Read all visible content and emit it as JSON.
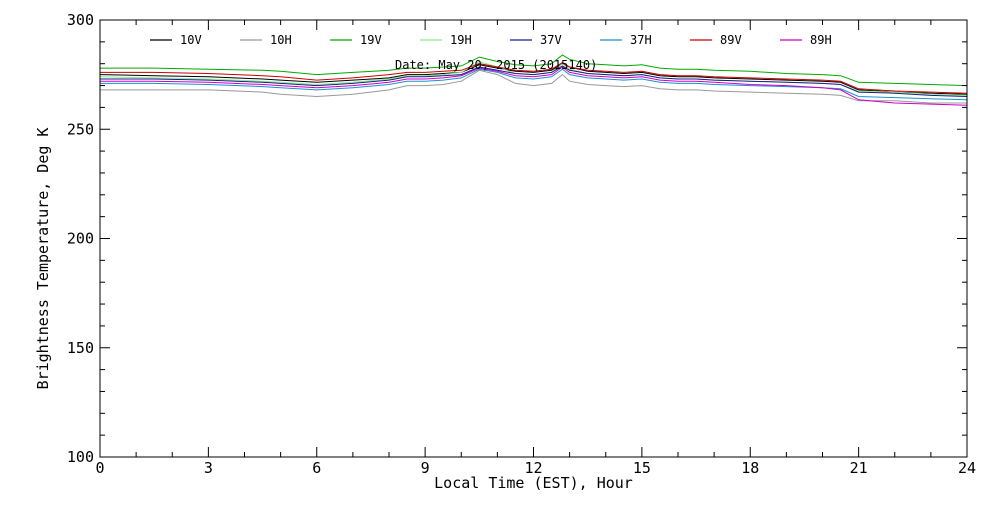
{
  "chart_data": {
    "type": "line",
    "title": "",
    "annotation": "Date: May 20, 2015 (2015140)",
    "xlabel": "Local Time (EST), Hour",
    "ylabel": "Brightness Temperature, Deg K",
    "xlim": [
      0,
      24
    ],
    "ylim": [
      100,
      300
    ],
    "x_ticks": [
      0,
      3,
      6,
      9,
      12,
      15,
      18,
      21,
      24
    ],
    "y_ticks": [
      100,
      150,
      200,
      250,
      300
    ],
    "grid": false,
    "legend_position": "top",
    "series": [
      {
        "name": "10V",
        "color": "#000000",
        "x": [
          0,
          1.5,
          3,
          4.5,
          5,
          6,
          7,
          8,
          8.5,
          9,
          9.5,
          10,
          10.5,
          11,
          11.5,
          12,
          12.5,
          12.8,
          13,
          13.5,
          14,
          14.5,
          15,
          15.5,
          16,
          16.5,
          17,
          18,
          19,
          20,
          20.5,
          21,
          22,
          23,
          24
        ],
        "y": [
          275,
          274.5,
          274,
          273,
          272.5,
          271.5,
          272.5,
          273.5,
          275,
          275,
          275.5,
          276,
          279.5,
          278,
          276.5,
          276,
          277,
          280,
          278.5,
          276.5,
          276,
          275.5,
          276,
          274.5,
          274,
          274,
          273.5,
          273,
          272.5,
          272,
          271.5,
          268,
          267,
          266.5,
          266
        ]
      },
      {
        "name": "10H",
        "color": "#999999",
        "x": [
          0,
          1.5,
          3,
          4.5,
          5,
          6,
          7,
          8,
          8.5,
          9,
          9.5,
          10,
          10.5,
          11,
          11.5,
          12,
          12.5,
          12.8,
          13,
          13.5,
          14,
          14.5,
          15,
          15.5,
          16,
          16.5,
          17,
          18,
          19,
          20,
          20.5,
          21,
          22,
          23,
          24
        ],
        "y": [
          268,
          268,
          268,
          267,
          266,
          265,
          266,
          268,
          270,
          270,
          270.5,
          272,
          277,
          275,
          271,
          270,
          271,
          275,
          272,
          270.5,
          270,
          269.5,
          270,
          268.5,
          268,
          268,
          267.5,
          267,
          266.5,
          266,
          265.5,
          263,
          263,
          262,
          262
        ]
      },
      {
        "name": "19V",
        "color": "#00aa00",
        "x": [
          0,
          1.5,
          3,
          4.5,
          5,
          6,
          7,
          8,
          8.5,
          9,
          9.5,
          10,
          10.5,
          11,
          11.5,
          12,
          12.5,
          12.8,
          13,
          13.5,
          14,
          14.5,
          15,
          15.5,
          16,
          16.5,
          17,
          18,
          19,
          20,
          20.5,
          21,
          22,
          23,
          24
        ],
        "y": [
          278,
          278,
          277.5,
          277,
          276.5,
          275,
          276,
          277,
          278,
          278,
          278.5,
          279,
          283,
          281,
          279.5,
          279,
          280,
          284,
          282,
          280,
          279.5,
          279,
          279.5,
          278,
          277.5,
          277.5,
          277,
          276.5,
          275.5,
          275,
          274.5,
          271.5,
          271,
          270.5,
          270
        ]
      },
      {
        "name": "19H",
        "color": "#88ee88",
        "x": [
          0,
          1.5,
          3,
          4.5,
          5,
          6,
          7,
          8,
          8.5,
          9,
          9.5,
          10,
          10.5,
          11,
          11.5,
          12,
          12.5,
          12.8,
          13,
          13.5,
          14,
          14.5,
          15,
          15.5,
          16,
          16.5,
          17,
          18,
          19,
          20,
          20.5,
          21,
          22,
          23,
          24
        ],
        "y": [
          274,
          273.5,
          273,
          272,
          271.5,
          270.5,
          271.5,
          273,
          274.5,
          274.5,
          275,
          276,
          281,
          278.5,
          275.5,
          275,
          276,
          280,
          277.5,
          275.5,
          275,
          274.5,
          275,
          273.5,
          273,
          273,
          272.5,
          272,
          271.5,
          271,
          270.5,
          267.5,
          267,
          266,
          265.5
        ]
      },
      {
        "name": "37V",
        "color": "#1a1a8c",
        "x": [
          0,
          1.5,
          3,
          4.5,
          5,
          6,
          7,
          8,
          8.5,
          9,
          9.5,
          10,
          10.5,
          11,
          11.5,
          12,
          12.5,
          12.8,
          13,
          13.5,
          14,
          14.5,
          15,
          15.5,
          16,
          16.5,
          17,
          18,
          19,
          20,
          20.5,
          21,
          22,
          23,
          24
        ],
        "y": [
          273,
          273,
          272.5,
          271.5,
          271,
          270,
          271,
          272.5,
          274,
          274,
          274.5,
          275,
          278.5,
          277,
          275.5,
          275,
          276,
          279,
          277,
          275.5,
          275,
          274.5,
          275,
          273.5,
          273,
          273,
          272.5,
          272,
          271.5,
          271,
          270.5,
          267,
          266.5,
          265.5,
          265
        ]
      },
      {
        "name": "37H",
        "color": "#1e8fcf",
        "x": [
          0,
          1.5,
          3,
          4.5,
          5,
          6,
          7,
          8,
          8.5,
          9,
          9.5,
          10,
          10.5,
          11,
          11.5,
          12,
          12.5,
          12.8,
          13,
          13.5,
          14,
          14.5,
          15,
          15.5,
          16,
          16.5,
          17,
          18,
          19,
          20,
          20.5,
          21,
          22,
          23,
          24
        ],
        "y": [
          271,
          271,
          270.5,
          269.5,
          269,
          268,
          269,
          270.5,
          272,
          272,
          272.5,
          273.5,
          277.5,
          276,
          273.5,
          273,
          274,
          277.5,
          275,
          273.5,
          273,
          272.5,
          273,
          271.5,
          271,
          271,
          270.5,
          270,
          269.5,
          269,
          268.5,
          265,
          264.5,
          264,
          263.5
        ]
      },
      {
        "name": "89V",
        "color": "#cc0000",
        "x": [
          0,
          1.5,
          3,
          4.5,
          5,
          6,
          7,
          8,
          8.5,
          9,
          9.5,
          10,
          10.5,
          11,
          11.5,
          12,
          12.5,
          12.8,
          13,
          13.5,
          14,
          14.5,
          15,
          15.5,
          16,
          16.5,
          17,
          18,
          19,
          20,
          20.5,
          21,
          22,
          23,
          24
        ],
        "y": [
          276,
          276,
          275.5,
          274.5,
          274,
          272.5,
          273.5,
          275,
          276,
          276,
          276.5,
          277,
          280,
          278.5,
          277,
          276.5,
          277.5,
          280.5,
          278.5,
          277,
          276.5,
          276,
          276.5,
          275,
          274.5,
          274.5,
          274,
          273.5,
          273,
          272.5,
          272,
          268.5,
          267.5,
          267,
          266.5
        ]
      },
      {
        "name": "89H",
        "color": "#cc00cc",
        "x": [
          0,
          1.5,
          3,
          4.5,
          5,
          6,
          7,
          8,
          8.5,
          9,
          9.5,
          10,
          10.5,
          11,
          11.5,
          12,
          12.5,
          12.8,
          13,
          13.5,
          14,
          14.5,
          15,
          15.5,
          16,
          16.5,
          17,
          18,
          19,
          20,
          20.5,
          21,
          22,
          23,
          24
        ],
        "y": [
          272,
          272,
          271.5,
          270.5,
          270,
          269,
          270,
          271.5,
          273,
          273,
          273.5,
          274.5,
          278,
          276.5,
          274.5,
          274,
          275,
          278.5,
          276,
          274.5,
          274,
          273.5,
          274,
          272.5,
          272,
          272,
          271.5,
          270.5,
          270,
          269,
          268,
          263.5,
          262,
          261.5,
          261
        ]
      }
    ]
  }
}
